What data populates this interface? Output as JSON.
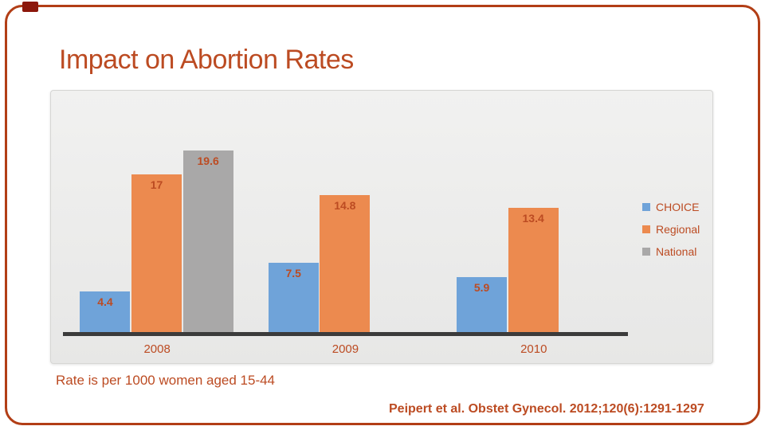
{
  "slide": {
    "title": "Impact on Abortion Rates",
    "caption": "Rate is per 1000 women aged 15-44",
    "citation": "Peipert et al. Obstet Gynecol. 2012;120(6):1291-1297"
  },
  "theme": {
    "background": "#FFFFFF",
    "accent_text": "#BC4B22",
    "frame_border": "#B23E16",
    "corner_tab": "#8C170B",
    "axis_line": "#3B3B3B",
    "chart_bg_top": "#F1F1F0",
    "chart_bg_bottom": "#E7E7E6"
  },
  "chart_data": {
    "type": "bar",
    "title": "",
    "xlabel": "",
    "ylabel": "",
    "categories": [
      "2008",
      "2009",
      "2010"
    ],
    "series": [
      {
        "name": "CHOICE",
        "color": "#6FA3D9",
        "values": [
          4.4,
          7.5,
          5.9
        ]
      },
      {
        "name": "Regional",
        "color": "#EC8A4F",
        "values": [
          17,
          14.8,
          13.4
        ]
      },
      {
        "name": "National",
        "color": "#A9A8A8",
        "values": [
          19.6,
          null,
          null
        ]
      }
    ],
    "value_labels": "inside-end",
    "ylim": [
      0,
      25
    ],
    "grid": false,
    "y_axis_visible": false,
    "legend_position": "right"
  }
}
